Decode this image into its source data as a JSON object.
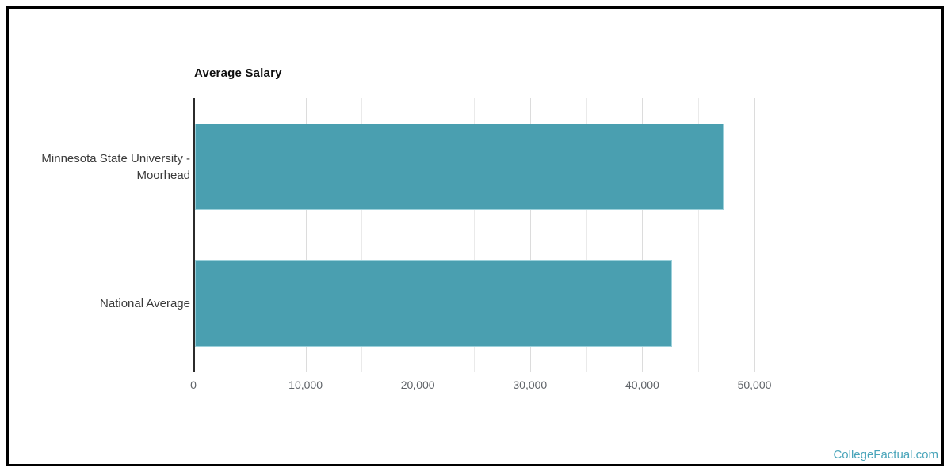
{
  "chart_data": {
    "type": "bar",
    "orientation": "horizontal",
    "title": "Average Salary",
    "categories": [
      "Minnesota State University - Moorhead",
      "National Average"
    ],
    "category_display_lines": [
      [
        "Minnesota State University -",
        "Moorhead"
      ],
      [
        "National Average"
      ]
    ],
    "values": [
      47100,
      42500
    ],
    "series": [
      {
        "name": "Average Salary",
        "values": [
          47100,
          42500
        ]
      }
    ],
    "xlabel": "",
    "ylabel": "",
    "xlim": [
      0,
      50000
    ],
    "x_tick_values": [
      0,
      10000,
      20000,
      30000,
      40000,
      50000
    ],
    "x_tick_labels": [
      "0",
      "10,000",
      "20,000",
      "30,000",
      "40,000",
      "50,000"
    ],
    "gridline_interval": 5000,
    "grid": true,
    "legend": false,
    "bar_color": "#4a9fb0",
    "bar_border_color": "#9bd0da",
    "axis_color": "#2b2b2b"
  },
  "watermark": {
    "label": "CollegeFactual.com",
    "color": "#4aa5ba"
  }
}
